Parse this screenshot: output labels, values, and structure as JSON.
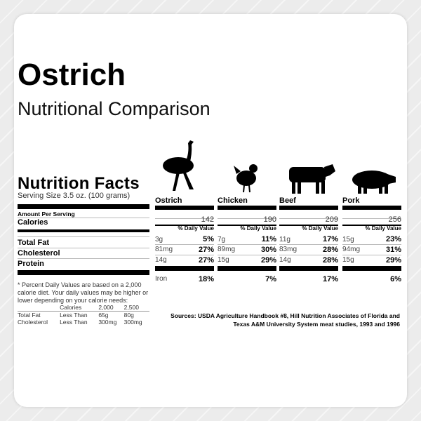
{
  "title": "Ostrich",
  "subtitle": "Nutritional Comparison",
  "label": {
    "heading": "Nutrition Facts",
    "serving": "Serving Size 3.5 oz. (100 grams)",
    "amount": "Amount Per Serving",
    "calories": "Calories",
    "total_fat": "Total Fat",
    "cholesterol": "Cholesterol",
    "protein": "Protein"
  },
  "daily_value_header": "% Daily Value",
  "iron_label": "Iron",
  "footnote": "* Percent Daily Values are based on a 2,000 calorie diet. Your daily values may be higher or lower depending on your calorie needs:",
  "ref_table": {
    "header": [
      "",
      "Calories",
      "2,000",
      "2,500"
    ],
    "rows": [
      [
        "Total Fat",
        "Less Than",
        "65g",
        "80g"
      ],
      [
        "Cholesterol",
        "Less Than",
        "300mg",
        "300mg"
      ]
    ]
  },
  "animals": [
    {
      "name": "Ostrich",
      "icon": "ostrich-icon",
      "calories": "142",
      "fat": "3g",
      "fat_pct": "5%",
      "chol": "81mg",
      "chol_pct": "27%",
      "protein": "14g",
      "protein_pct": "27%",
      "iron_pct": "18%"
    },
    {
      "name": "Chicken",
      "icon": "chicken-icon",
      "calories": "190",
      "fat": "7g",
      "fat_pct": "11%",
      "chol": "89mg",
      "chol_pct": "30%",
      "protein": "15g",
      "protein_pct": "29%",
      "iron_pct": "7%"
    },
    {
      "name": "Beef",
      "icon": "cow-icon",
      "calories": "209",
      "fat": "11g",
      "fat_pct": "17%",
      "chol": "83mg",
      "chol_pct": "28%",
      "protein": "14g",
      "protein_pct": "28%",
      "iron_pct": "17%"
    },
    {
      "name": "Pork",
      "icon": "pig-icon",
      "calories": "256",
      "fat": "15g",
      "fat_pct": "23%",
      "chol": "94mg",
      "chol_pct": "31%",
      "protein": "15g",
      "protein_pct": "29%",
      "iron_pct": "6%"
    }
  ],
  "sources": "Sources: USDA Agriculture Handbook #8, Hill Nutrition Associates of Florida and Texas A&M University System meat studies, 1993 and 1996"
}
